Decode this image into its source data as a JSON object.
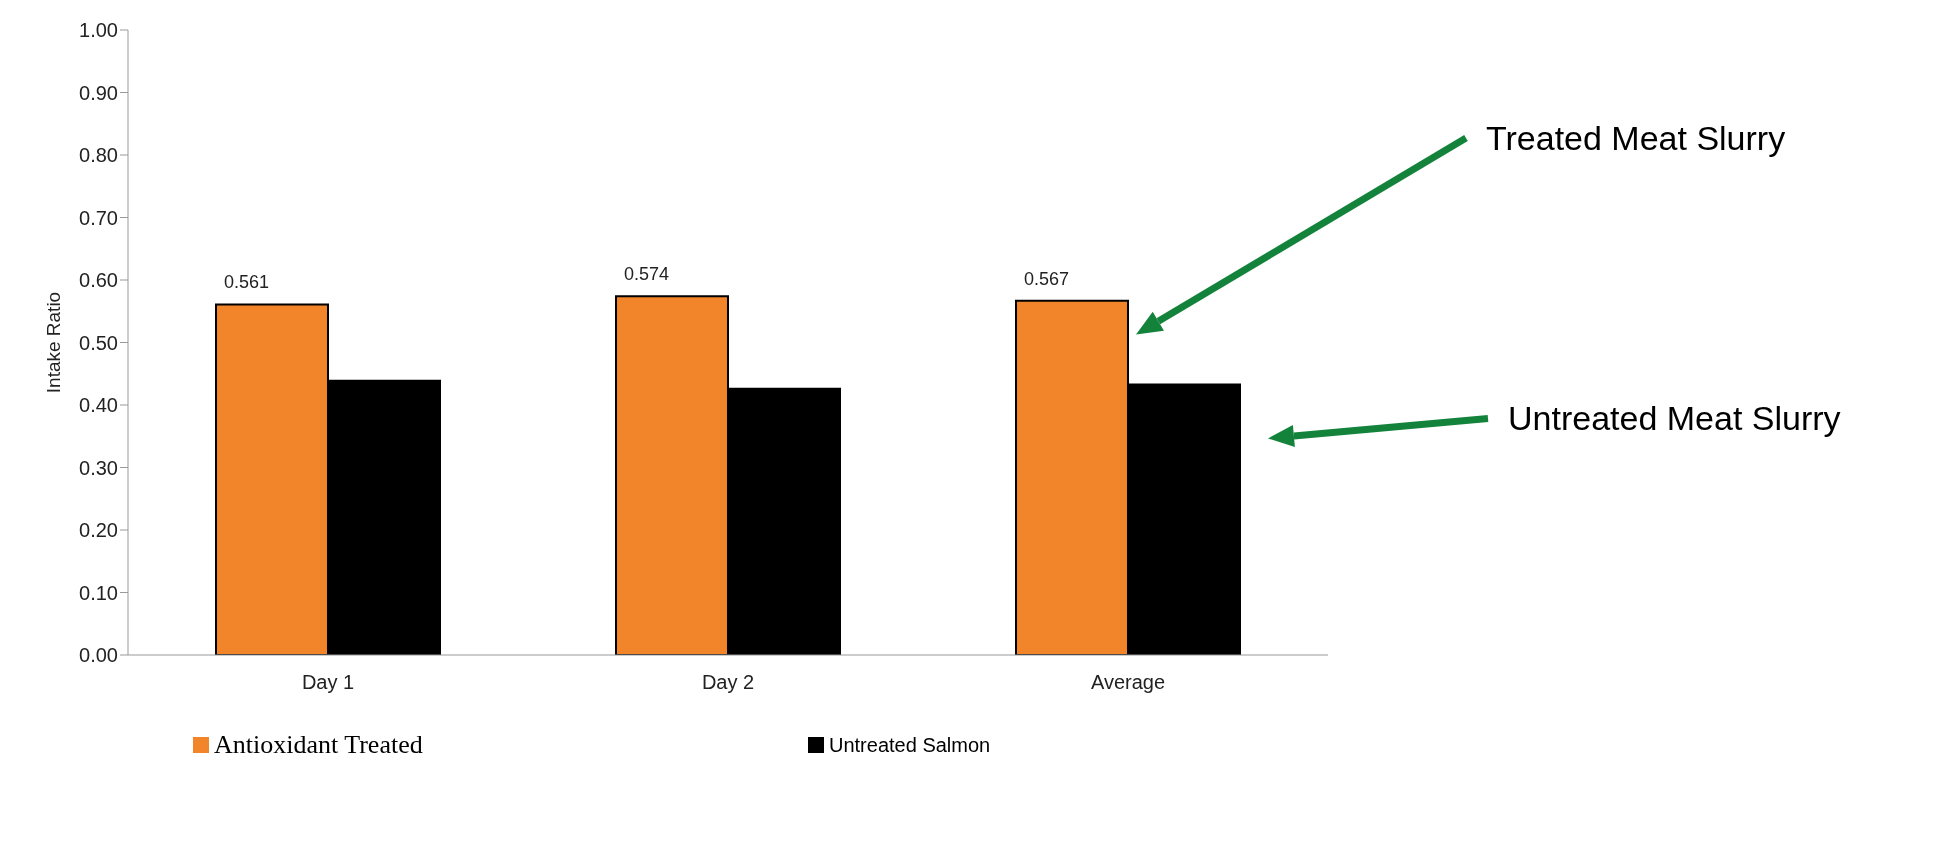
{
  "chart_data": {
    "type": "bar",
    "ylabel": "Intake Ratio",
    "categories": [
      "Day 1",
      "Day 2",
      "Average"
    ],
    "series": [
      {
        "name": "Antioxidant Treated",
        "color": "#f28529",
        "values": [
          0.561,
          0.574,
          0.567
        ],
        "value_labels": [
          "0.561",
          "0.574",
          "0.567"
        ]
      },
      {
        "name": "Untreated Salmon",
        "color": "#000000",
        "values": [
          0.439,
          0.426,
          0.433
        ]
      }
    ],
    "ylim": [
      0,
      1
    ],
    "yticks": [
      "0.00",
      "0.10",
      "0.20",
      "0.30",
      "0.40",
      "0.50",
      "0.60",
      "0.70",
      "0.80",
      "0.90",
      "1.00"
    ],
    "grid": false,
    "legend": "bottom",
    "annotations": [
      "Treated Meat Slurry",
      "Untreated Meat Slurry"
    ]
  }
}
